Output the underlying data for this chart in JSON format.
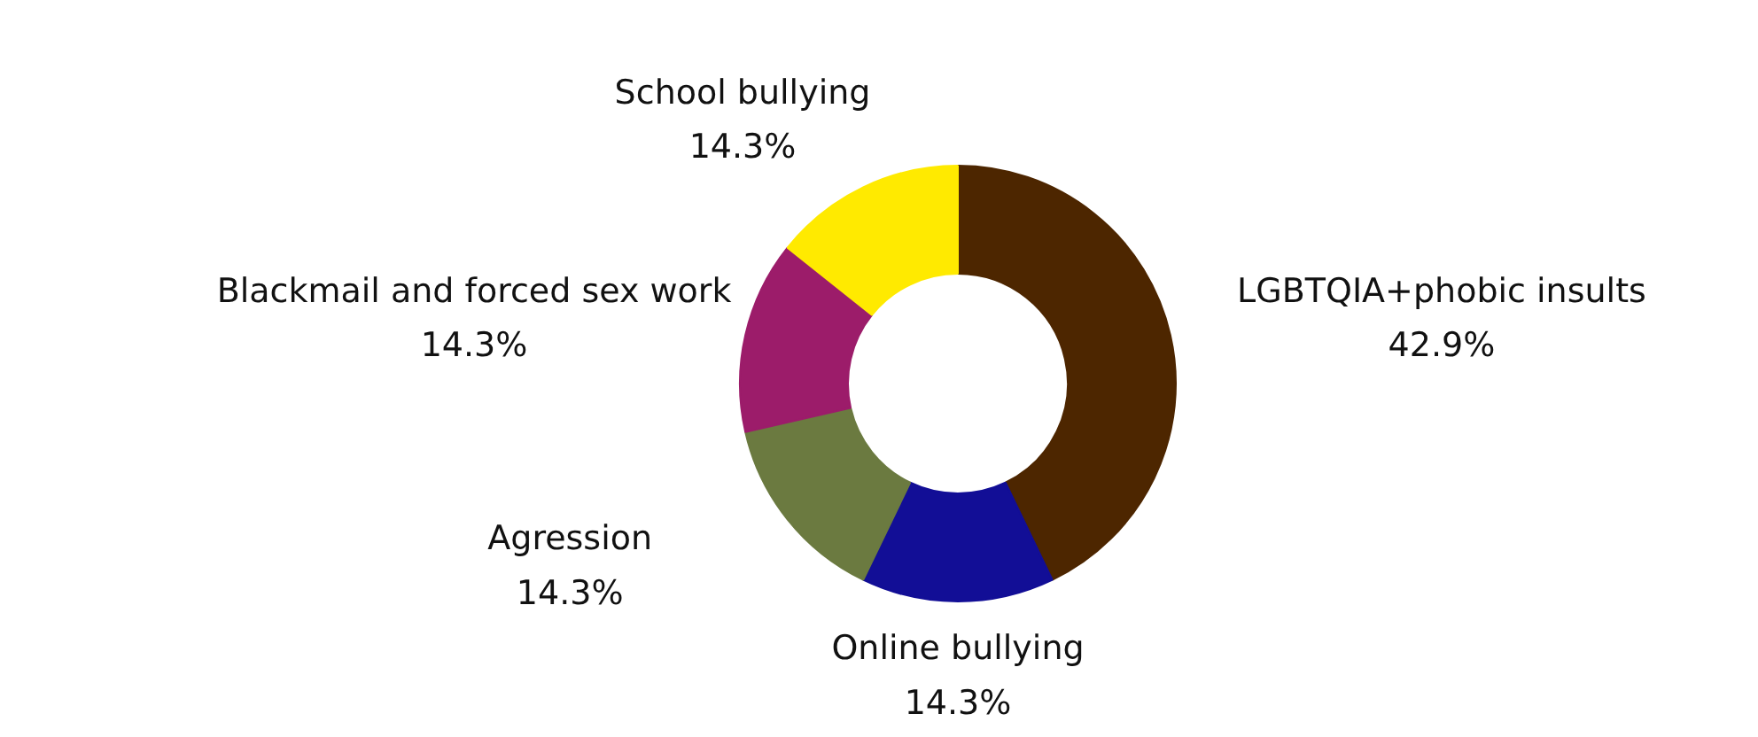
{
  "chart_data": {
    "type": "donut",
    "categories": [
      "LGBTQIA+phobic insults",
      "Online bullying",
      "Agression",
      "Blackmail and forced sex work",
      "School bullying"
    ],
    "values": [
      42.9,
      14.3,
      14.3,
      14.3,
      14.3
    ],
    "value_labels": [
      "42.9%",
      "14.3%",
      "14.3%",
      "14.3%",
      "14.3%"
    ],
    "colors": [
      "#4d2600",
      "#120e96",
      "#6b7a40",
      "#9c1c6a",
      "#ffea00"
    ]
  }
}
